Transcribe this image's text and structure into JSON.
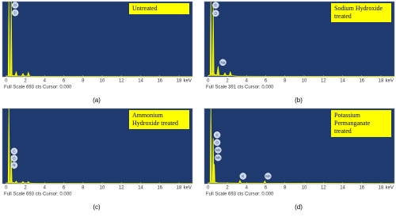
{
  "chart_data": [
    {
      "type": "line",
      "caption": "(a)",
      "label_box": "Untreated",
      "footer": "Full Scale 693 cts Cursor: 0.000",
      "x_unit": "keV",
      "x": [
        0,
        0.2,
        0.28,
        0.36,
        0.45,
        0.52,
        0.6,
        0.9,
        1.04,
        1.15,
        1.6,
        1.74,
        1.9,
        2.2,
        2.3,
        2.45,
        3,
        19.4
      ],
      "series": [
        {
          "color": "#ffff00",
          "values": [
            5,
            10,
            693,
            20,
            15,
            693,
            15,
            8,
            45,
            8,
            6,
            30,
            6,
            8,
            40,
            6,
            3,
            2
          ]
        }
      ],
      "xlim": [
        -0.4,
        19.4
      ],
      "xticks": [
        0,
        2,
        4,
        6,
        8,
        10,
        12,
        14,
        16,
        18
      ],
      "ylim": [
        0,
        693
      ],
      "peak_labels": [
        {
          "label": "O",
          "x": 0.6,
          "y": 660
        },
        {
          "label": "C",
          "x": 0.6,
          "y": 590
        }
      ]
    },
    {
      "type": "line",
      "caption": "(b)",
      "label_box": "Sodium Hydroxide treated",
      "footer": "Full Scale 391 cts Cursor: 0.000",
      "x_unit": "keV",
      "x": [
        0,
        0.2,
        0.28,
        0.36,
        0.45,
        0.52,
        0.6,
        0.9,
        1.04,
        1.15,
        1.6,
        1.74,
        1.9,
        2.2,
        2.3,
        2.45,
        3,
        19.4
      ],
      "series": [
        {
          "color": "#ffff00",
          "values": [
            5,
            10,
            391,
            20,
            15,
            370,
            15,
            8,
            55,
            8,
            6,
            20,
            6,
            8,
            25,
            6,
            3,
            2
          ]
        }
      ],
      "xlim": [
        -0.4,
        19.4
      ],
      "xticks": [
        0,
        2,
        4,
        6,
        8,
        10,
        12,
        14,
        16,
        18
      ],
      "ylim": [
        0,
        391
      ],
      "peak_labels": [
        {
          "label": "C",
          "x": 0.45,
          "y": 372
        },
        {
          "label": "O",
          "x": 0.45,
          "y": 330
        },
        {
          "label": "Na",
          "x": 1.2,
          "y": 75
        }
      ]
    },
    {
      "type": "line",
      "caption": "(c)",
      "label_box": "Ammonium Hydroxide treated",
      "footer": "Full Scale 693 cts Cursor: 0.000",
      "x_unit": "keV",
      "x": [
        0,
        0.2,
        0.28,
        0.36,
        0.45,
        0.52,
        0.6,
        0.9,
        1.04,
        1.15,
        1.6,
        1.74,
        1.9,
        2.2,
        2.3,
        2.45,
        3,
        19.4
      ],
      "series": [
        {
          "color": "#ffff00",
          "values": [
            5,
            10,
            693,
            20,
            15,
            260,
            15,
            8,
            25,
            8,
            6,
            20,
            6,
            8,
            20,
            6,
            3,
            2
          ]
        }
      ],
      "xlim": [
        -0.4,
        19.4
      ],
      "xticks": [
        0,
        2,
        4,
        6,
        8,
        10,
        12,
        14,
        16,
        18
      ],
      "ylim": [
        0,
        693
      ],
      "peak_labels": [
        {
          "label": "C",
          "x": 0.5,
          "y": 300
        },
        {
          "label": "O",
          "x": 0.5,
          "y": 235
        },
        {
          "label": "N",
          "x": 0.5,
          "y": 170
        }
      ]
    },
    {
      "type": "line",
      "caption": "(d)",
      "label_box": "Potassium Permanganate treated",
      "footer": "Full Scale 693 cts Cursor: 0.000",
      "x_unit": "keV",
      "x": [
        0,
        0.2,
        0.28,
        0.36,
        0.45,
        0.52,
        0.6,
        0.64,
        0.7,
        1.0,
        2.3,
        3.2,
        3.31,
        3.45,
        5.8,
        5.9,
        6.0,
        19.4
      ],
      "series": [
        {
          "color": "#ffff00",
          "values": [
            5,
            10,
            693,
            20,
            15,
            420,
            30,
            180,
            15,
            8,
            6,
            5,
            30,
            5,
            5,
            25,
            5,
            2
          ]
        }
      ],
      "xlim": [
        -0.4,
        19.4
      ],
      "xticks": [
        0,
        2,
        4,
        6,
        8,
        10,
        12,
        14,
        16,
        18
      ],
      "ylim": [
        0,
        693
      ],
      "peak_labels": [
        {
          "label": "C",
          "x": 0.6,
          "y": 450
        },
        {
          "label": "O",
          "x": 0.6,
          "y": 380
        },
        {
          "label": "Mn",
          "x": 0.7,
          "y": 310
        },
        {
          "label": "Mn",
          "x": 0.7,
          "y": 240
        },
        {
          "label": "K",
          "x": 3.3,
          "y": 70
        },
        {
          "label": "Mn",
          "x": 5.9,
          "y": 70
        }
      ]
    }
  ]
}
